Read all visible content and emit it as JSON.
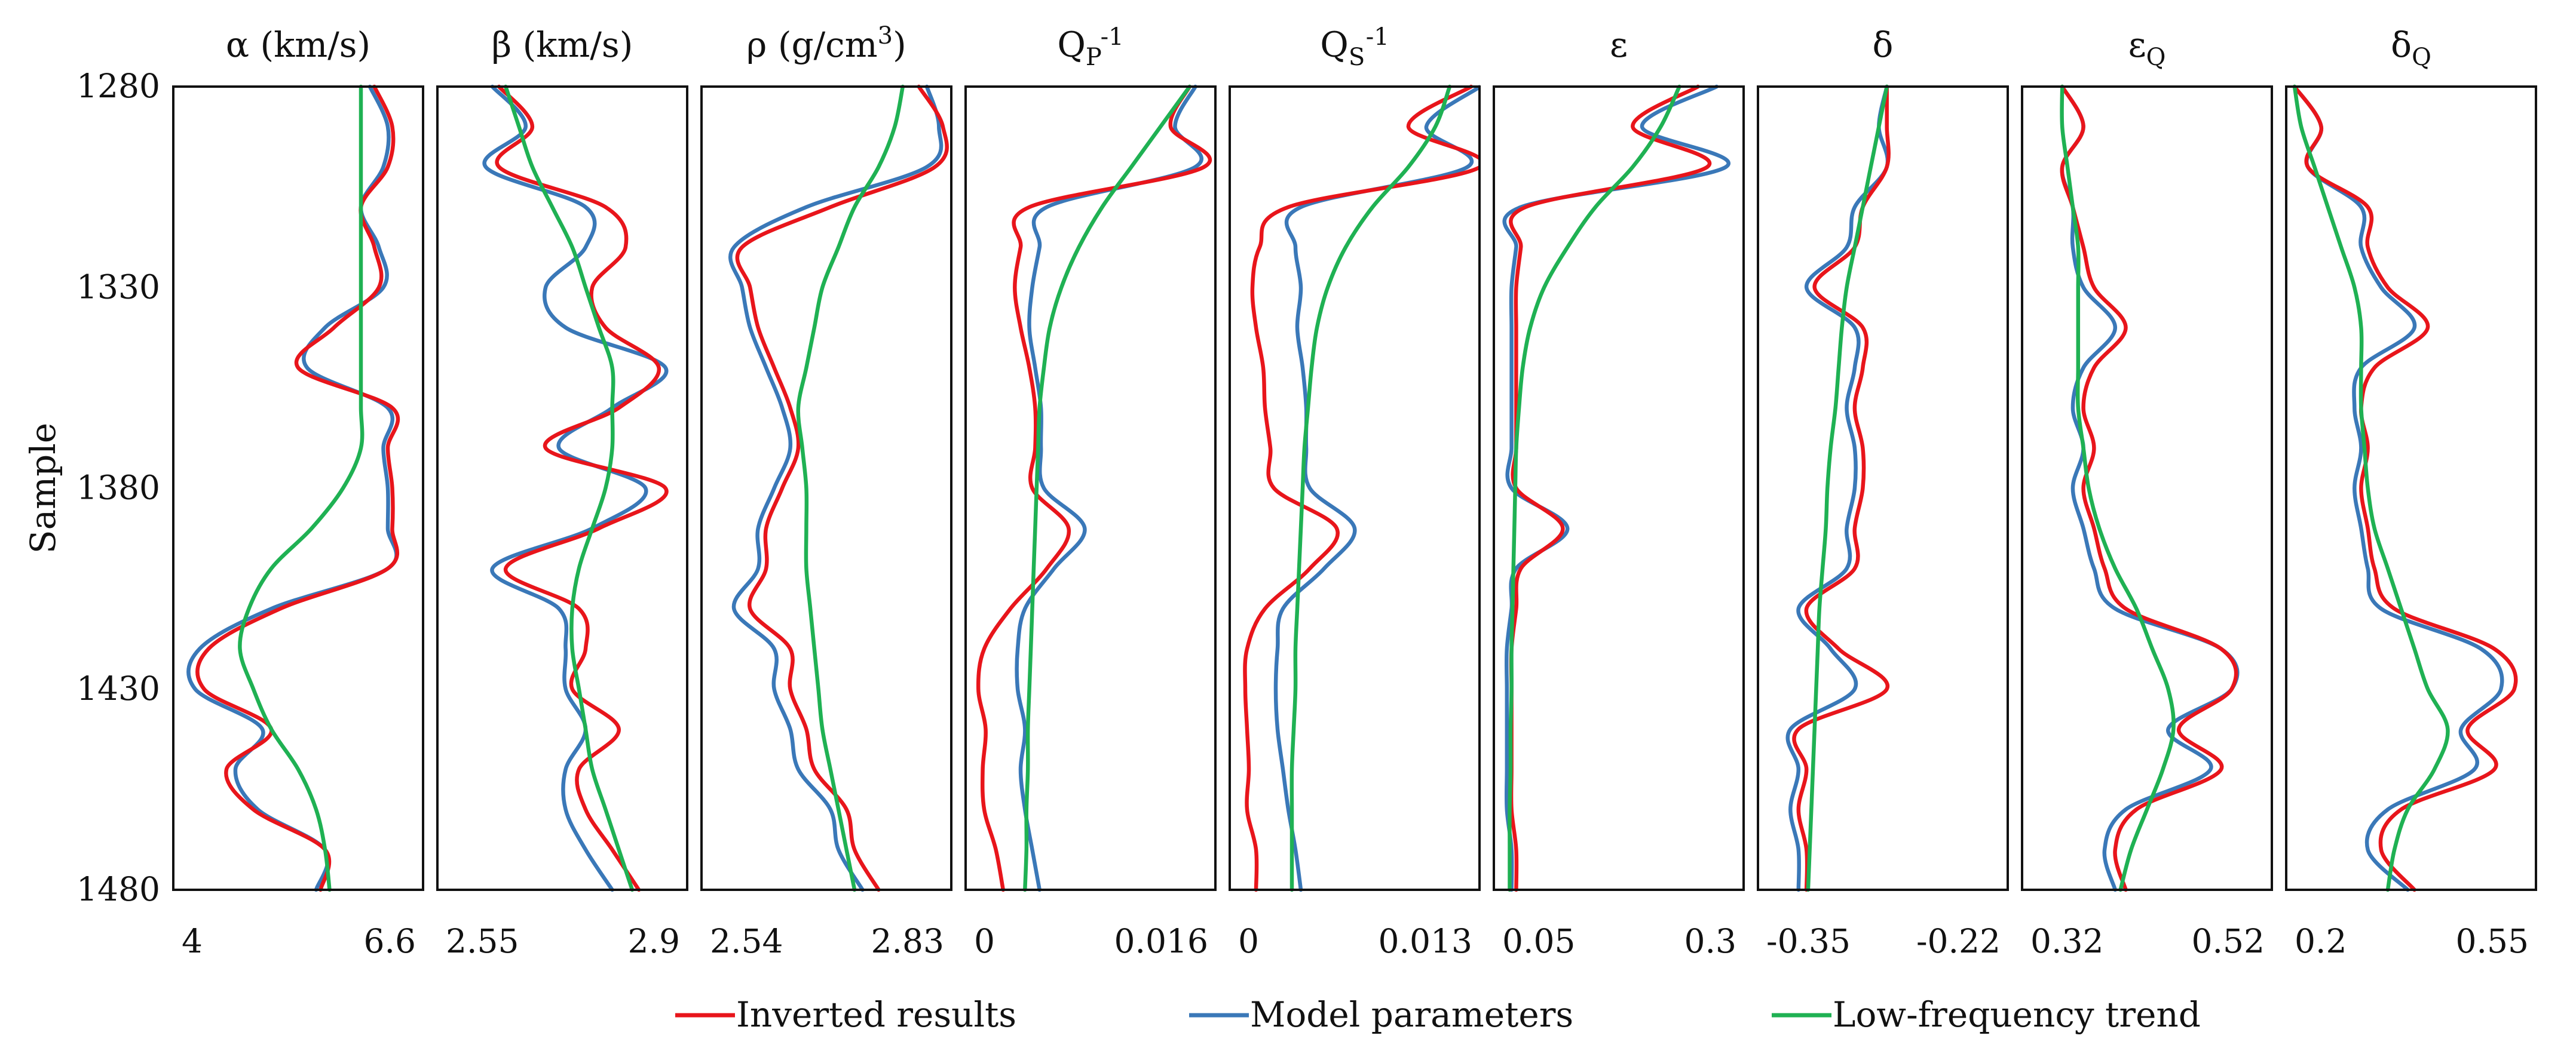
{
  "chart_data": {
    "type": "line",
    "ylabel": "Sample",
    "ylim": [
      1280,
      1480
    ],
    "y_ticks": [
      1280,
      1330,
      1380,
      1430,
      1480
    ],
    "sample_step": 10,
    "colors": {
      "inverted": "#e8151b",
      "model": "#3a78b8",
      "trend": "#1fb153"
    },
    "legend": [
      {
        "key": "inverted",
        "label": "Inverted results"
      },
      {
        "key": "model",
        "label": "Model parameters"
      },
      {
        "key": "trend",
        "label": "Low-frequency trend"
      }
    ],
    "panels": [
      {
        "id": "alpha",
        "title": {
          "main": "α (km/s)",
          "sub": "",
          "sup": "",
          "tail": ""
        },
        "xlim": [
          4,
          6.6
        ],
        "xtick_labels": [
          "4",
          "6.6"
        ],
        "series": {
          "model": [
            6.1,
            6.3,
            6.25,
            6.0,
            6.2,
            6.25,
            5.6,
            5.4,
            6.3,
            6.25,
            6.3,
            6.3,
            6.3,
            5.0,
            4.2,
            4.15,
            4.9,
            4.6,
            4.85,
            5.6,
            5.5
          ],
          "inverted": [
            6.15,
            6.35,
            6.3,
            6.0,
            6.15,
            6.2,
            5.7,
            5.3,
            6.35,
            6.3,
            6.35,
            6.35,
            6.3,
            5.1,
            4.3,
            4.25,
            5.0,
            4.5,
            4.8,
            5.6,
            5.55
          ],
          "trend": [
            6.0,
            6.0,
            6.0,
            6.0,
            6.0,
            6.0,
            6.0,
            6.0,
            6.0,
            6.0,
            5.8,
            5.45,
            5.0,
            4.75,
            4.65,
            4.8,
            5.0,
            5.3,
            5.5,
            5.6,
            5.65
          ]
        }
      },
      {
        "id": "beta",
        "title": {
          "main": "β (km/s)",
          "sub": "",
          "sup": "",
          "tail": ""
        },
        "xlim": [
          2.55,
          2.9
        ],
        "xtick_labels": [
          "2.55",
          "2.9"
        ],
        "series": {
          "model": [
            2.62,
            2.67,
            2.61,
            2.76,
            2.76,
            2.7,
            2.73,
            2.88,
            2.8,
            2.72,
            2.85,
            2.77,
            2.62,
            2.72,
            2.73,
            2.73,
            2.76,
            2.73,
            2.73,
            2.76,
            2.8
          ],
          "inverted": [
            2.63,
            2.68,
            2.63,
            2.79,
            2.82,
            2.77,
            2.79,
            2.87,
            2.81,
            2.7,
            2.88,
            2.78,
            2.64,
            2.75,
            2.76,
            2.74,
            2.81,
            2.75,
            2.76,
            2.8,
            2.84
          ],
          "trend": [
            2.64,
            2.66,
            2.68,
            2.71,
            2.74,
            2.76,
            2.78,
            2.8,
            2.8,
            2.8,
            2.79,
            2.77,
            2.75,
            2.74,
            2.74,
            2.75,
            2.76,
            2.77,
            2.79,
            2.81,
            2.83
          ]
        }
      },
      {
        "id": "rho",
        "title": {
          "main": "ρ (g/cm",
          "sub": "",
          "sup": "3",
          "tail": ")"
        },
        "xlim": [
          2.54,
          2.83
        ],
        "xtick_labels": [
          "2.54",
          "2.83"
        ],
        "series": {
          "model": [
            2.81,
            2.825,
            2.81,
            2.66,
            2.57,
            2.58,
            2.59,
            2.61,
            2.63,
            2.64,
            2.62,
            2.6,
            2.6,
            2.57,
            2.62,
            2.62,
            2.64,
            2.65,
            2.69,
            2.7,
            2.73
          ],
          "inverted": [
            2.8,
            2.83,
            2.82,
            2.69,
            2.58,
            2.59,
            2.6,
            2.62,
            2.64,
            2.65,
            2.63,
            2.61,
            2.61,
            2.59,
            2.64,
            2.64,
            2.66,
            2.67,
            2.71,
            2.72,
            2.75
          ],
          "trend": [
            2.78,
            2.77,
            2.75,
            2.72,
            2.7,
            2.68,
            2.67,
            2.66,
            2.65,
            2.655,
            2.66,
            2.66,
            2.66,
            2.665,
            2.67,
            2.675,
            2.68,
            2.69,
            2.7,
            2.71,
            2.72
          ]
        }
      },
      {
        "id": "qp",
        "title": {
          "main": "Q",
          "sub": "P",
          "sup": "-1",
          "tail": ""
        },
        "xlim": [
          0,
          0.016
        ],
        "xtick_labels": [
          "0",
          "0.016"
        ],
        "series": {
          "model": [
            0.0152,
            0.0138,
            0.0152,
            0.005,
            0.0045,
            0.004,
            0.0038,
            0.0042,
            0.0046,
            0.0046,
            0.0048,
            0.0076,
            0.0055,
            0.0035,
            0.003,
            0.003,
            0.0035,
            0.0032,
            0.0035,
            0.004,
            0.0045
          ],
          "inverted": [
            0.0148,
            0.0135,
            0.0158,
            0.0038,
            0.0032,
            0.0028,
            0.0032,
            0.0038,
            0.0042,
            0.0042,
            0.004,
            0.0065,
            0.005,
            0.0025,
            0.0007,
            0.0003,
            0.0008,
            0.0006,
            0.0007,
            0.0015,
            0.002
          ],
          "trend": [
            0.0148,
            0.0128,
            0.0108,
            0.0088,
            0.0072,
            0.006,
            0.0052,
            0.0048,
            0.0045,
            0.0044,
            0.0043,
            0.0042,
            0.0041,
            0.004,
            0.0039,
            0.0038,
            0.0037,
            0.0037,
            0.0036,
            0.0036,
            0.0035
          ]
        }
      },
      {
        "id": "qs",
        "title": {
          "main": "Q",
          "sub": "S",
          "sup": "-1",
          "tail": ""
        },
        "xlim": [
          0,
          0.013
        ],
        "xtick_labels": [
          "0",
          "0.013"
        ],
        "series": {
          "model": [
            0.0135,
            0.0105,
            0.0128,
            0.0035,
            0.0032,
            0.0035,
            0.0033,
            0.0036,
            0.0038,
            0.0038,
            0.004,
            0.0065,
            0.0048,
            0.0025,
            0.0022,
            0.0021,
            0.0022,
            0.0025,
            0.0028,
            0.0032,
            0.0035
          ],
          "inverted": [
            0.013,
            0.0095,
            0.0135,
            0.0028,
            0.0012,
            0.0008,
            0.001,
            0.0014,
            0.0015,
            0.0018,
            0.002,
            0.0055,
            0.004,
            0.0015,
            0.0005,
            0.0004,
            0.0005,
            0.0006,
            0.0005,
            0.001,
            0.001
          ],
          "trend": [
            0.0118,
            0.011,
            0.0095,
            0.0075,
            0.006,
            0.005,
            0.0044,
            0.0041,
            0.0039,
            0.0037,
            0.0036,
            0.0035,
            0.0034,
            0.0033,
            0.0032,
            0.0032,
            0.0031,
            0.003,
            0.003,
            0.003,
            0.003
          ]
        }
      },
      {
        "id": "eps",
        "title": {
          "main": "ε",
          "sub": "",
          "sup": "",
          "tail": ""
        },
        "xlim": [
          0.05,
          0.3
        ],
        "xtick_labels": [
          "0.05",
          "0.3"
        ],
        "series": {
          "model": [
            0.28,
            0.2,
            0.29,
            0.07,
            0.065,
            0.06,
            0.06,
            0.06,
            0.06,
            0.06,
            0.06,
            0.12,
            0.065,
            0.06,
            0.055,
            0.055,
            0.055,
            0.055,
            0.055,
            0.06,
            0.06
          ],
          "inverted": [
            0.26,
            0.19,
            0.27,
            0.075,
            0.07,
            0.065,
            0.065,
            0.065,
            0.065,
            0.065,
            0.065,
            0.115,
            0.07,
            0.065,
            0.06,
            0.06,
            0.06,
            0.06,
            0.06,
            0.065,
            0.065
          ],
          "trend": [
            0.24,
            0.22,
            0.19,
            0.15,
            0.12,
            0.095,
            0.08,
            0.072,
            0.068,
            0.065,
            0.064,
            0.063,
            0.062,
            0.061,
            0.06,
            0.06,
            0.059,
            0.059,
            0.058,
            0.058,
            0.058
          ]
        }
      },
      {
        "id": "delta",
        "title": {
          "main": "δ",
          "sub": "",
          "sup": "",
          "tail": ""
        },
        "xlim": [
          -0.365,
          -0.22
        ],
        "xtick_labels": [
          "-0.35",
          "-0.22"
        ],
        "series": {
          "model": [
            -0.29,
            -0.295,
            -0.29,
            -0.31,
            -0.315,
            -0.34,
            -0.31,
            -0.31,
            -0.315,
            -0.31,
            -0.31,
            -0.315,
            -0.315,
            -0.345,
            -0.325,
            -0.31,
            -0.35,
            -0.345,
            -0.35,
            -0.345,
            -0.345
          ],
          "inverted": [
            -0.29,
            -0.29,
            -0.29,
            -0.305,
            -0.31,
            -0.335,
            -0.305,
            -0.305,
            -0.31,
            -0.305,
            -0.305,
            -0.31,
            -0.31,
            -0.34,
            -0.32,
            -0.29,
            -0.345,
            -0.34,
            -0.345,
            -0.34,
            -0.34
          ],
          "trend": [
            -0.29,
            -0.295,
            -0.3,
            -0.305,
            -0.31,
            -0.315,
            -0.318,
            -0.32,
            -0.322,
            -0.325,
            -0.327,
            -0.328,
            -0.33,
            -0.332,
            -0.333,
            -0.334,
            -0.335,
            -0.336,
            -0.337,
            -0.338,
            -0.339
          ]
        }
      },
      {
        "id": "epsq",
        "title": {
          "main": "ε",
          "sub": "Q",
          "sup": "",
          "tail": ""
        },
        "xlim": [
          0.3,
          0.52
        ],
        "xtick_labels": [
          "0.32",
          "0.52"
        ],
        "series": {
          "model": [
            0.33,
            0.35,
            0.33,
            0.34,
            0.34,
            0.35,
            0.38,
            0.35,
            0.34,
            0.35,
            0.34,
            0.35,
            0.36,
            0.38,
            0.48,
            0.49,
            0.43,
            0.47,
            0.39,
            0.37,
            0.38
          ],
          "inverted": [
            0.33,
            0.35,
            0.33,
            0.34,
            0.35,
            0.36,
            0.39,
            0.36,
            0.35,
            0.36,
            0.35,
            0.36,
            0.37,
            0.39,
            0.48,
            0.49,
            0.44,
            0.48,
            0.4,
            0.38,
            0.39
          ],
          "trend": [
            0.33,
            0.33,
            0.335,
            0.34,
            0.345,
            0.345,
            0.345,
            0.345,
            0.345,
            0.35,
            0.355,
            0.365,
            0.38,
            0.4,
            0.415,
            0.43,
            0.435,
            0.425,
            0.41,
            0.395,
            0.385
          ]
        }
      },
      {
        "id": "deltaq",
        "title": {
          "main": "δ",
          "sub": "Q",
          "sup": "",
          "tail": ""
        },
        "xlim": [
          0.2,
          0.55
        ],
        "xtick_labels": [
          "0.2",
          "0.55"
        ],
        "series": {
          "model": [
            0.2,
            0.24,
            0.22,
            0.3,
            0.3,
            0.33,
            0.38,
            0.3,
            0.29,
            0.3,
            0.29,
            0.3,
            0.31,
            0.33,
            0.48,
            0.51,
            0.45,
            0.47,
            0.34,
            0.31,
            0.37
          ],
          "inverted": [
            0.2,
            0.24,
            0.22,
            0.31,
            0.31,
            0.34,
            0.4,
            0.32,
            0.3,
            0.31,
            0.3,
            0.31,
            0.32,
            0.35,
            0.5,
            0.53,
            0.46,
            0.5,
            0.36,
            0.33,
            0.38
          ],
          "trend": [
            0.2,
            0.21,
            0.23,
            0.25,
            0.27,
            0.29,
            0.3,
            0.3,
            0.3,
            0.305,
            0.31,
            0.32,
            0.34,
            0.36,
            0.38,
            0.4,
            0.43,
            0.41,
            0.37,
            0.35,
            0.34
          ]
        }
      }
    ]
  }
}
